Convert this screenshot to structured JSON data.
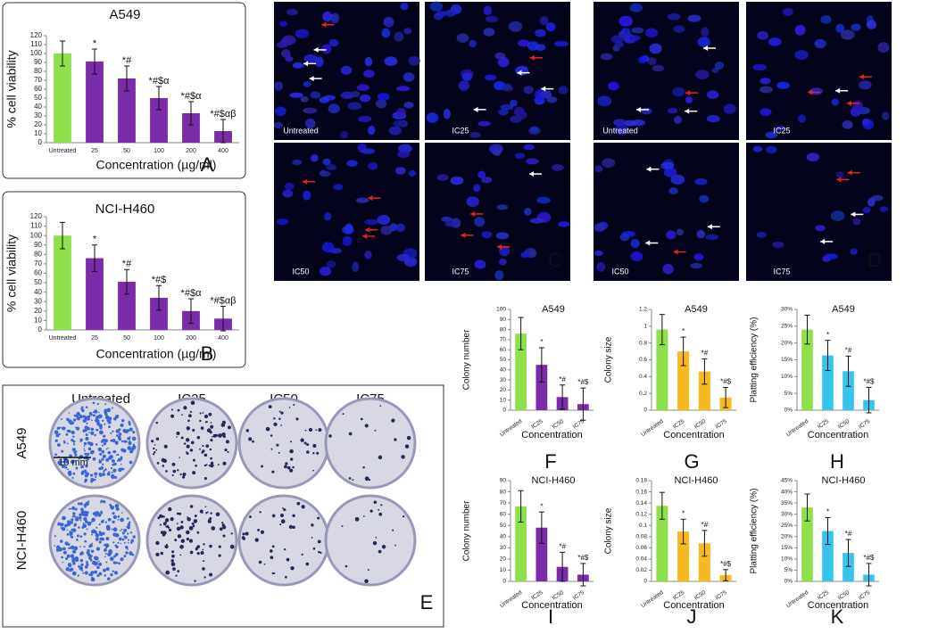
{
  "chart_data": [
    {
      "type": "bar",
      "panel_label": "A",
      "title": "A549",
      "ylabel": "% cell viability",
      "xlabel": "Concentration (µg/ml)",
      "categories": [
        "Untreated",
        "25",
        "50",
        "100",
        "200",
        "400"
      ],
      "values": [
        100,
        91,
        72,
        50,
        33,
        13
      ],
      "errors": [
        14,
        14,
        14,
        13,
        13,
        13
      ],
      "annotations": [
        null,
        "*",
        "*#",
        "*#$α",
        "*#$α",
        "*#$αβ"
      ],
      "colors": [
        "#8ee04b",
        "#7b2ca8",
        "#7b2ca8",
        "#7b2ca8",
        "#7b2ca8",
        "#7b2ca8"
      ],
      "ylim": [
        0,
        120
      ],
      "yticks": [
        0,
        10,
        20,
        30,
        40,
        50,
        60,
        70,
        80,
        90,
        100,
        110,
        120
      ]
    },
    {
      "type": "bar",
      "panel_label": "B",
      "title": "NCI-H460",
      "ylabel": "% cell viability",
      "xlabel": "Concentration (µg/ml)",
      "categories": [
        "Untreated",
        "25",
        "50",
        "100",
        "200",
        "400"
      ],
      "values": [
        100,
        76,
        51,
        34,
        20,
        12
      ],
      "errors": [
        14,
        14,
        13,
        13,
        13,
        13
      ],
      "annotations": [
        null,
        "*",
        "*#",
        "*#$",
        "*#$α",
        "*#$αβ"
      ],
      "colors": [
        "#8ee04b",
        "#7b2ca8",
        "#7b2ca8",
        "#7b2ca8",
        "#7b2ca8",
        "#7b2ca8"
      ],
      "ylim": [
        0,
        120
      ],
      "yticks": [
        0,
        10,
        20,
        30,
        40,
        50,
        60,
        70,
        80,
        90,
        100,
        110,
        120
      ]
    },
    {
      "type": "bar",
      "panel_label": "F",
      "title": "A549",
      "ylabel": "Colony number",
      "xlabel": "Concentration",
      "categories": [
        "Untreated",
        "IC25",
        "IC50",
        "IC75"
      ],
      "values": [
        76,
        45,
        13,
        6
      ],
      "errors": [
        16,
        17,
        12,
        16
      ],
      "annotations": [
        null,
        "*",
        "*#",
        "*#$"
      ],
      "colors": [
        "#8ee04b",
        "#7b2ca8",
        "#7b2ca8",
        "#7b2ca8"
      ],
      "ylim": [
        0,
        100
      ],
      "yticks": [
        0,
        10,
        20,
        30,
        40,
        50,
        60,
        70,
        80,
        90,
        100
      ]
    },
    {
      "type": "bar",
      "panel_label": "G",
      "title": "A549",
      "ylabel": "Colony size",
      "xlabel": "Concentration",
      "categories": [
        "Untreated",
        "IC25",
        "IC50",
        "IC75"
      ],
      "values": [
        0.96,
        0.7,
        0.46,
        0.15
      ],
      "errors": [
        0.18,
        0.17,
        0.15,
        0.12
      ],
      "annotations": [
        null,
        "*",
        "*#",
        "*#$"
      ],
      "colors": [
        "#8ee04b",
        "#f6b922",
        "#f6b922",
        "#f6b922"
      ],
      "ylim": [
        0,
        1.2
      ],
      "yticks": [
        0,
        0.2,
        0.4,
        0.6,
        0.8,
        1,
        1.2
      ]
    },
    {
      "type": "bar",
      "panel_label": "H",
      "title": "A549",
      "ylabel": "Platting efficiency (%)",
      "xlabel": "Concentration",
      "categories": [
        "Untreated",
        "IC25",
        "IC50",
        "IC75"
      ],
      "values": [
        24,
        16.3,
        11.6,
        3
      ],
      "errors": [
        4.3,
        4.5,
        4.5,
        3.8
      ],
      "annotations": [
        null,
        "*",
        "*#",
        "*#$"
      ],
      "colors": [
        "#8ee04b",
        "#36c3ec",
        "#36c3ec",
        "#36c3ec"
      ],
      "ylim": [
        0,
        30
      ],
      "yticks": [
        {
          "value": 0,
          "label": "0%"
        },
        {
          "value": 5,
          "label": "5%"
        },
        {
          "value": 10,
          "label": "10%"
        },
        {
          "value": 15,
          "label": "15%"
        },
        {
          "value": 20,
          "label": "20%"
        },
        {
          "value": 25,
          "label": "25%"
        },
        {
          "value": 30,
          "label": "30%"
        }
      ]
    },
    {
      "type": "bar",
      "panel_label": "I",
      "title": "NCI-H460",
      "ylabel": "Colony number",
      "xlabel": "Concentration",
      "categories": [
        "Untreated",
        "IC25",
        "IC50",
        "IC75"
      ],
      "values": [
        67,
        48,
        13,
        6
      ],
      "errors": [
        14,
        14,
        13,
        10
      ],
      "annotations": [
        null,
        "*",
        "*#",
        "*#$"
      ],
      "colors": [
        "#8ee04b",
        "#7b2ca8",
        "#7b2ca8",
        "#7b2ca8"
      ],
      "ylim": [
        0,
        90
      ],
      "yticks": [
        0,
        10,
        20,
        30,
        40,
        50,
        60,
        70,
        80,
        90
      ]
    },
    {
      "type": "bar",
      "panel_label": "J",
      "title": "NCI-H460",
      "ylabel": "Colony size",
      "xlabel": "Concentration",
      "categories": [
        "Untreated",
        "IC25",
        "IC50",
        "IC75"
      ],
      "values": [
        0.135,
        0.089,
        0.068,
        0.011
      ],
      "errors": [
        0.024,
        0.022,
        0.023,
        0.01
      ],
      "annotations": [
        null,
        "*",
        "*#",
        "*#$"
      ],
      "colors": [
        "#8ee04b",
        "#f6b922",
        "#f6b922",
        "#f6b922"
      ],
      "ylim": [
        0,
        0.18
      ],
      "yticks": [
        0,
        0.02,
        0.04,
        0.06,
        0.08,
        0.1,
        0.12,
        0.14,
        0.16,
        0.18
      ]
    },
    {
      "type": "bar",
      "panel_label": "K",
      "title": "NCI-H460",
      "ylabel": "Platting efficiency (%)",
      "xlabel": "Concentration",
      "categories": [
        "Untreated",
        "IC25",
        "IC50",
        "IC75"
      ],
      "values": [
        33,
        22.5,
        12.7,
        3
      ],
      "errors": [
        6,
        6,
        6,
        5
      ],
      "annotations": [
        null,
        "*",
        "*#",
        "*#$"
      ],
      "colors": [
        "#8ee04b",
        "#36c3ec",
        "#36c3ec",
        "#36c3ec"
      ],
      "ylim": [
        0,
        45
      ],
      "yticks": [
        {
          "value": 0,
          "label": "0%"
        },
        {
          "value": 5,
          "label": "5%"
        },
        {
          "value": 10,
          "label": "10%"
        },
        {
          "value": 15,
          "label": "15%"
        },
        {
          "value": 20,
          "label": "20%"
        },
        {
          "value": 25,
          "label": "25%"
        },
        {
          "value": 30,
          "label": "30%"
        },
        {
          "value": 35,
          "label": "35%"
        },
        {
          "value": 40,
          "label": "40%"
        },
        {
          "value": 45,
          "label": "45%"
        }
      ]
    }
  ],
  "microscopy": [
    {
      "panel_label": "C",
      "images": [
        "Untreated",
        "IC25",
        "IC50",
        "IC75"
      ]
    },
    {
      "panel_label": "D",
      "images": [
        "Untreated",
        "IC25",
        "IC50",
        "IC75"
      ]
    }
  ],
  "colony_assay": {
    "panel_label": "E",
    "columns": [
      "Untreated",
      "IC25",
      "IC50",
      "IC75"
    ],
    "rows": [
      "A549",
      "NCI-H460"
    ],
    "scale_bar": "10 mm"
  }
}
